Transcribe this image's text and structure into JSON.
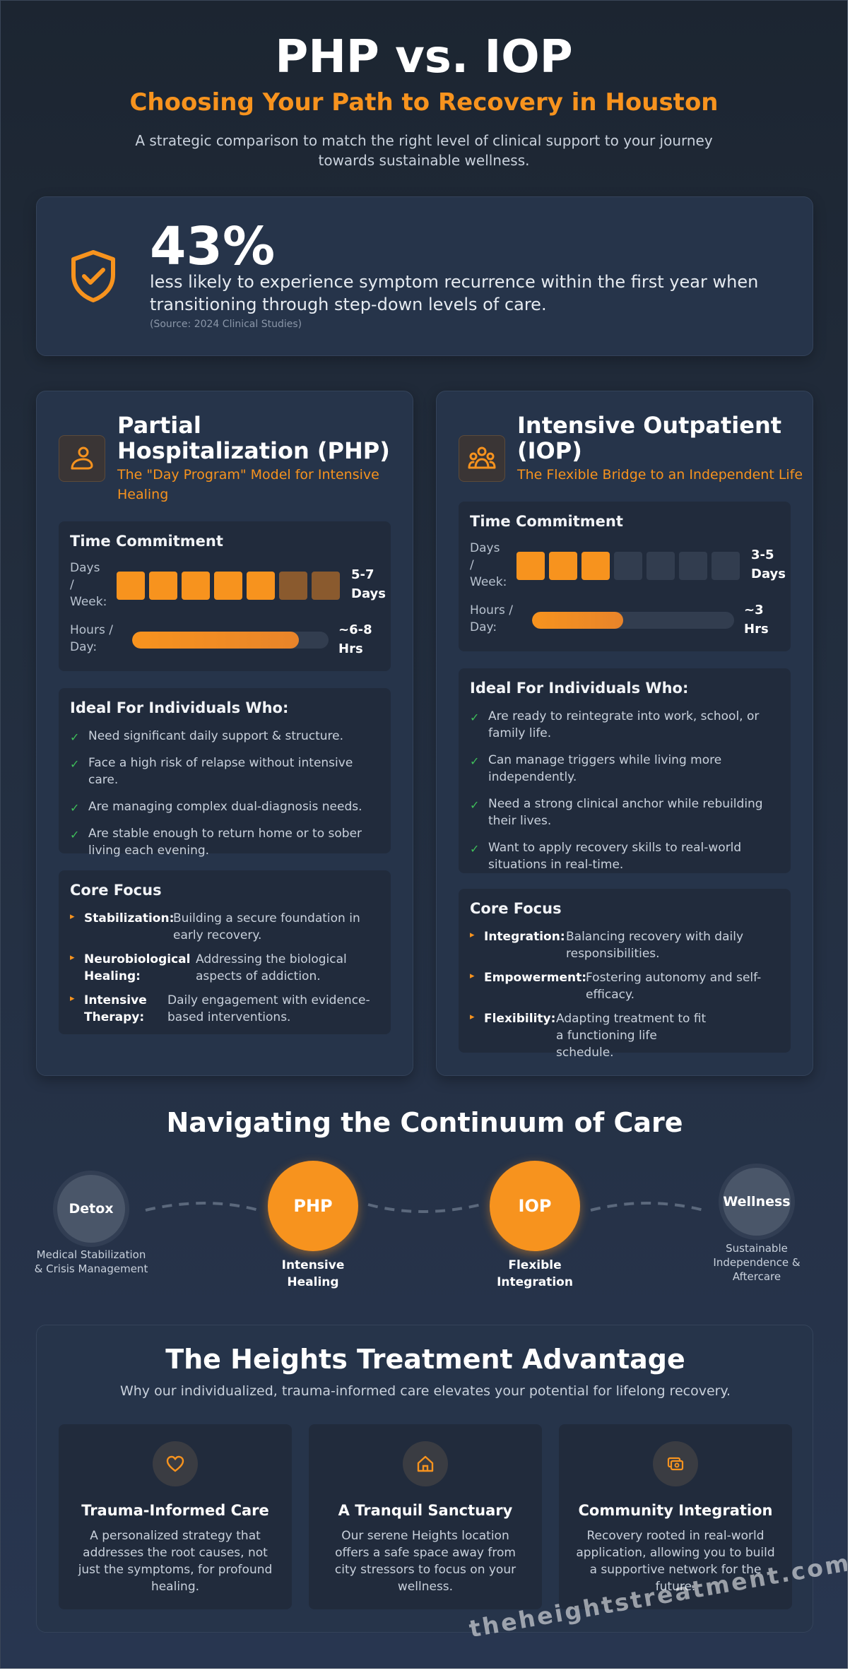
{
  "header": {
    "title": "PHP vs. IOP",
    "subtitle": "Choosing Your Path to Recovery in Houston",
    "intro": "A strategic comparison to match the right level of clinical support to your journey towards sustainable wellness."
  },
  "stat": {
    "icon": "shield-check-icon",
    "value": "43%",
    "text": "less likely to experience symptom recurrence within the first year when transitioning through step-down levels of care.",
    "source": "(Source: 2024 Clinical Studies)"
  },
  "colors": {
    "accent": "#f7931e",
    "check": "#3fbf5a",
    "card": "#26344a",
    "inner": "#212b3c"
  },
  "php": {
    "icon": "person-care-icon",
    "title": "Partial Hospitalization (PHP)",
    "subtitle": "The \"Day Program\" Model for Intensive Healing",
    "time_title": "Time Commitment",
    "days_label": "Days / Week:",
    "days_value": "5-7 Days",
    "days_blocks": [
      "on",
      "on",
      "on",
      "on",
      "on",
      "partial",
      "partial"
    ],
    "hours_label": "Hours / Day:",
    "hours_value": "~6-8 Hrs",
    "hours_fill": 0.85,
    "ideal_title": "Ideal For Individuals Who:",
    "ideal": [
      "Need significant daily support & structure.",
      "Face a high risk of relapse without intensive care.",
      "Are managing complex dual-diagnosis needs.",
      "Are stable enough to return home or to sober living each evening."
    ],
    "focus_title": "Core Focus",
    "focus": [
      {
        "term": "Stabilization:",
        "desc": "Building a secure foundation in early recovery."
      },
      {
        "term": "Neurobiological Healing:",
        "desc": "Addressing the biological aspects of addiction."
      },
      {
        "term": "Intensive Therapy:",
        "desc": "Daily engagement with evidence-based interventions."
      }
    ]
  },
  "iop": {
    "icon": "group-people-icon",
    "title": "Intensive Outpatient (IOP)",
    "subtitle": "The Flexible Bridge to an Independent Life",
    "time_title": "Time Commitment",
    "days_label": "Days / Week:",
    "days_value": "3-5 Days",
    "days_blocks": [
      "on",
      "on",
      "on",
      "off",
      "off",
      "off",
      "off"
    ],
    "hours_label": "Hours / Day:",
    "hours_value": "~3 Hrs",
    "hours_fill": 0.45,
    "ideal_title": "Ideal For Individuals Who:",
    "ideal": [
      "Are ready to reintegrate into work, school, or family life.",
      "Can manage triggers while living more independently.",
      "Need a strong clinical anchor while rebuilding their lives.",
      "Want to apply recovery skills to real-world situations in real-time."
    ],
    "focus_title": "Core Focus",
    "focus": [
      {
        "term": "Integration:",
        "desc": "Balancing recovery with daily responsibilities."
      },
      {
        "term": "Empowerment:",
        "desc": "Fostering autonomy and self-efficacy."
      },
      {
        "term": "Flexibility:",
        "desc": "Adapting treatment to fit a functioning life schedule."
      }
    ]
  },
  "continuum": {
    "title": "Navigating the Continuum of Care",
    "nodes": [
      {
        "label": "Detox",
        "caption": "Medical Stabilization & Crisis Management"
      },
      {
        "label": "PHP",
        "caption": "Intensive Healing"
      },
      {
        "label": "IOP",
        "caption": "Flexible Integration"
      },
      {
        "label": "Wellness",
        "caption": "Sustainable Independence & Aftercare"
      }
    ]
  },
  "advantage": {
    "title": "The Heights Treatment Advantage",
    "subtitle": "Why our individualized, trauma-informed care elevates your potential for lifelong recovery.",
    "features": [
      {
        "icon": "heart-icon",
        "title": "Trauma-Informed Care",
        "desc": "A personalized strategy that addresses the root causes, not just the symptoms, for profound healing."
      },
      {
        "icon": "home-icon",
        "title": "A Tranquil Sanctuary",
        "desc": "Our serene Heights location offers a safe space away from city stressors to focus on your wellness."
      },
      {
        "icon": "community-icon",
        "title": "Community Integration",
        "desc": "Recovery rooted in real-world application, allowing you to build a supportive network for the future."
      }
    ]
  },
  "watermark": "theheightstreatment.com"
}
